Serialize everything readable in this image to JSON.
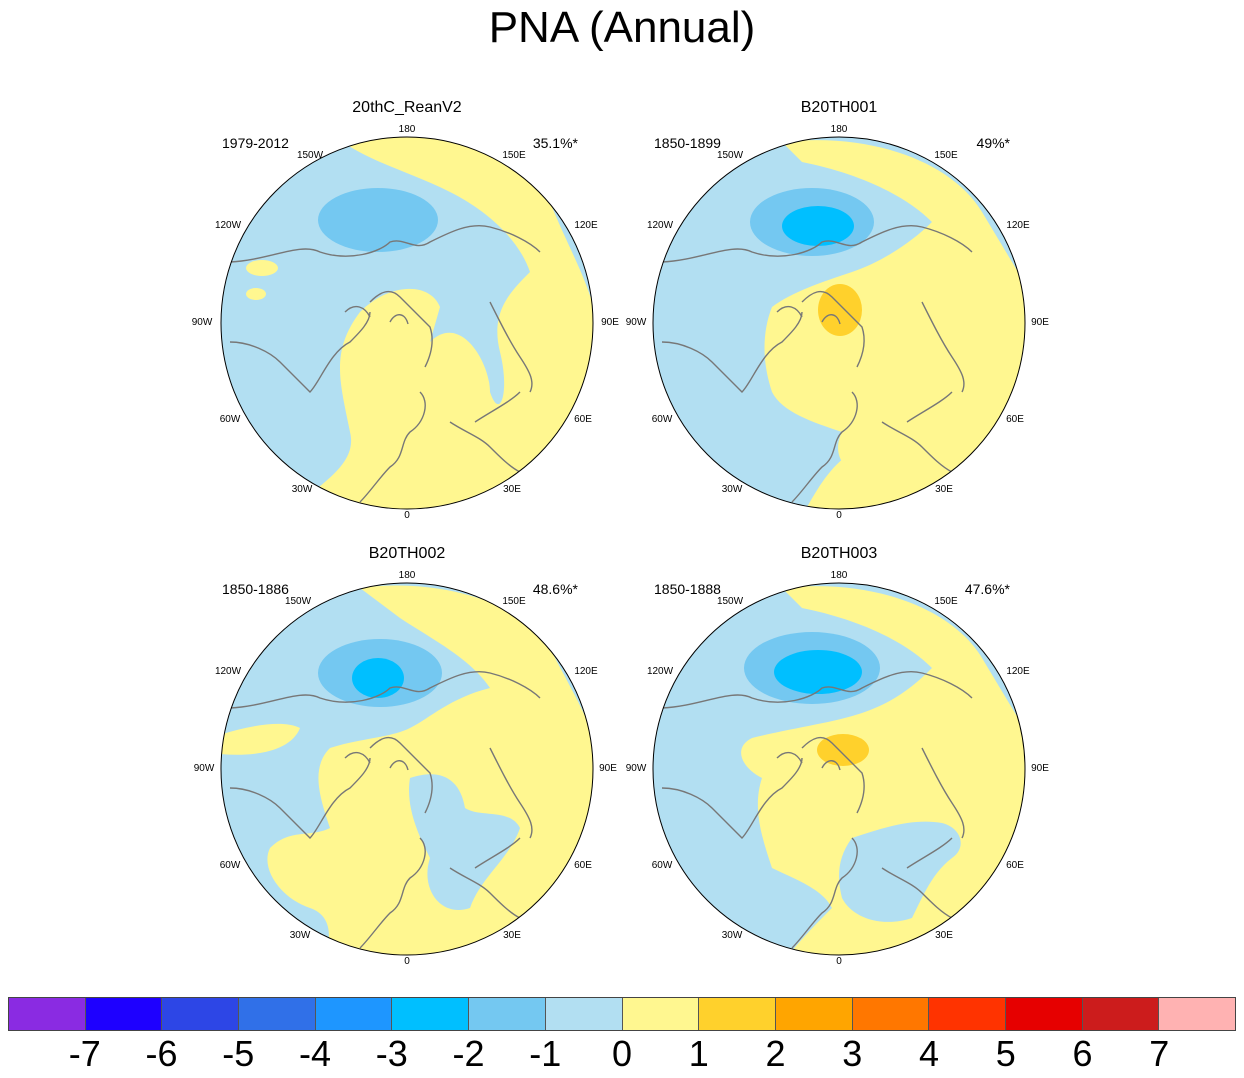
{
  "title": "PNA (Annual)",
  "colors": {
    "ocean": "#b2dff2",
    "land_positive": "#fff790",
    "negative_1": "#b2dff2",
    "negative_2": "#74c8f1",
    "negative_3": "#00bfff",
    "positive_1": "#fff790",
    "positive_2": "#ffd12c",
    "coast": "#777777"
  },
  "longitude_labels": {
    "top": "180",
    "top_left": "150W",
    "top_right": "150E",
    "upper_left": "120W",
    "upper_right": "120E",
    "left": "90W",
    "right": "90E",
    "lower_left": "60W",
    "lower_right": "60E",
    "bottom_left": "30W",
    "bottom_right": "30E",
    "bottom": "0"
  },
  "panels": [
    {
      "title": "20thC_ReanV2",
      "period": "1979-2012",
      "variance": "35.1%*"
    },
    {
      "title": "B20TH001",
      "period": "1850-1899",
      "variance": "49%*"
    },
    {
      "title": "B20TH002",
      "period": "1850-1886",
      "variance": "48.6%*"
    },
    {
      "title": "B20TH003",
      "period": "1850-1888",
      "variance": "47.6%*"
    }
  ],
  "colorbar": {
    "colors": [
      "#8a2be2",
      "#1e00ff",
      "#2d46e6",
      "#3070e8",
      "#1e96ff",
      "#00bfff",
      "#74c8f1",
      "#b2dff2",
      "#fff790",
      "#ffd12c",
      "#ffa500",
      "#ff7700",
      "#ff3300",
      "#e60000",
      "#cc1c1c",
      "#ffb2b2"
    ],
    "labels": [
      "-7",
      "-6",
      "-5",
      "-4",
      "-3",
      "-2",
      "-1",
      "0",
      "1",
      "2",
      "3",
      "4",
      "5",
      "6",
      "7"
    ]
  }
}
